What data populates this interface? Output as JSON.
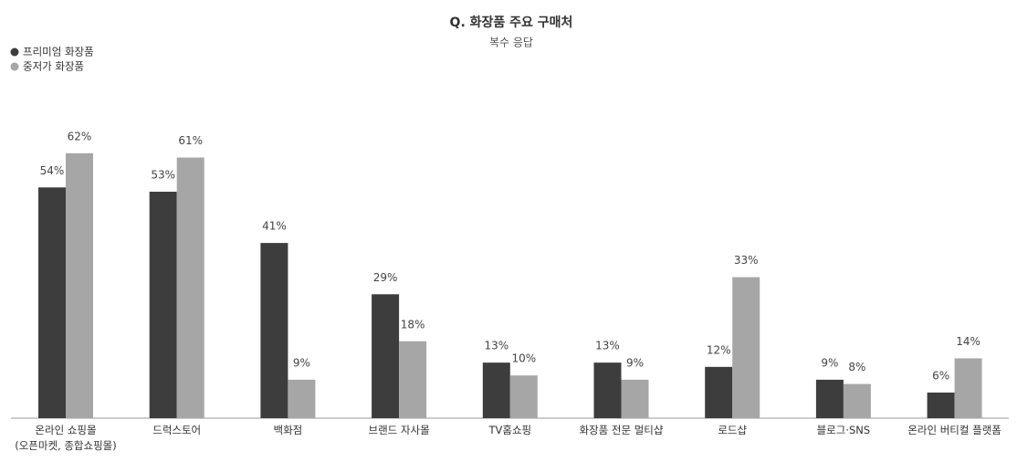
{
  "chart_data": {
    "type": "bar",
    "title": "Q. 화장품 주요 구매처",
    "subtitle": "복수 응답",
    "categories": [
      "온라인 쇼핑몰\n(오픈마켓, 종합쇼핑몰)",
      "드럭스토어",
      "백화점",
      "브랜드 자사몰",
      "TV홈쇼핑",
      "화장품 전문 멀티샵",
      "로드샵",
      "블로그·SNS",
      "온라인 버티컬 플랫폼"
    ],
    "series": [
      {
        "name": "프리미엄 화장품",
        "color": "#3d3d3d",
        "values": [
          54,
          53,
          41,
          29,
          13,
          13,
          12,
          9,
          6
        ],
        "value_labels": [
          "54%",
          "53%",
          "41%",
          "29%",
          "13%",
          "13%",
          "12%",
          "9%",
          "6%"
        ]
      },
      {
        "name": "중저가 화장품",
        "color": "#a6a6a6",
        "values": [
          62,
          61,
          9,
          18,
          10,
          9,
          33,
          8,
          14
        ],
        "value_labels": [
          "62%",
          "61%",
          "9%",
          "18%",
          "10%",
          "9%",
          "33%",
          "8%",
          "14%"
        ]
      }
    ]
  }
}
